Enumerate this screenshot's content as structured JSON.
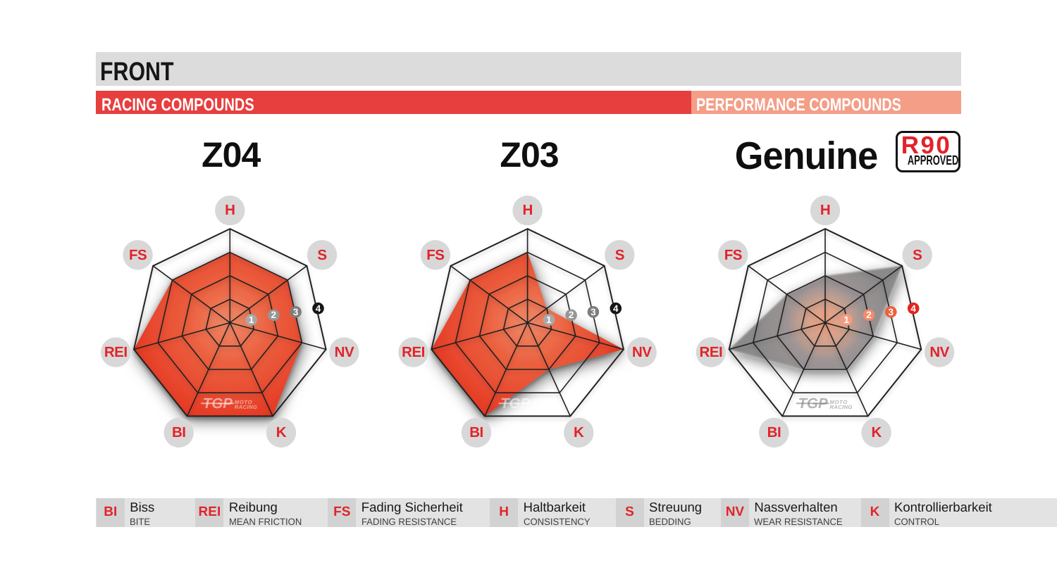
{
  "page": {
    "section_label": "FRONT",
    "left_band_label": "RACING COMPOUNDS",
    "right_band_label": "PERFORMANCE COMPOUNDS"
  },
  "colors": {
    "header_gray": "#dcdcdc",
    "racing_red": "#e73e3e",
    "performance_salmon": "#f49e88",
    "accent_red": "#e2232a",
    "web_line": "#202020",
    "label_circle": "#d8d8d8",
    "legend_strip": "#e3e3e3",
    "legend_box": "#d2d2d2",
    "scale_gray_palette": [
      "#a8a8a8",
      "#969696",
      "#7d7d7d",
      "#161616"
    ],
    "scale_red_palette": [
      "#f59c80",
      "#f28a6c",
      "#eb6140",
      "#e1251f"
    ],
    "red_fill_stops": [
      "#f08a69",
      "#eb5f3e",
      "#e84a30",
      "#e53420"
    ],
    "gray_fill_stops": [
      "#f2a17e",
      "#cf9f8b",
      "#9a9192",
      "#878787"
    ]
  },
  "watermark": {
    "brand": "TGP",
    "line1": "MOTO",
    "line2": "RACING"
  },
  "scale_ticks": [
    "1",
    "2",
    "3",
    "4"
  ],
  "chart_data": {
    "type": "radar",
    "scale": [
      0,
      4
    ],
    "rings": 4,
    "axes": [
      "H",
      "S",
      "NV",
      "K",
      "BI",
      "REI",
      "FS"
    ],
    "series": [
      {
        "name": "Z04",
        "group": "racing",
        "values": [
          3,
          3,
          3,
          4,
          4,
          4,
          3
        ]
      },
      {
        "name": "Z03",
        "group": "racing",
        "values": [
          3,
          1,
          4,
          2,
          4,
          4,
          3
        ]
      },
      {
        "name": "Genuine",
        "group": "performance",
        "values": [
          2,
          4,
          2,
          2,
          2,
          4,
          2
        ],
        "badge": [
          "R90",
          "APPROVED"
        ]
      }
    ]
  },
  "charts": [
    {
      "title": "Z04",
      "fill": "red"
    },
    {
      "title": "Z03",
      "fill": "red"
    },
    {
      "title": "Genuine",
      "fill": "gray",
      "badge_line1": "R90",
      "badge_line2": "APPROVED"
    }
  ],
  "legend": [
    {
      "abbr": "BI",
      "de": "Biss",
      "en": "BITE"
    },
    {
      "abbr": "REI",
      "de": "Reibung",
      "en": "MEAN FRICTION"
    },
    {
      "abbr": "FS",
      "de": "Fading Sicherheit",
      "en": "FADING RESISTANCE"
    },
    {
      "abbr": "H",
      "de": "Haltbarkeit",
      "en": "CONSISTENCY"
    },
    {
      "abbr": "S",
      "de": "Streuung",
      "en": "BEDDING"
    },
    {
      "abbr": "NV",
      "de": "Nassverhalten",
      "en": "WEAR RESISTANCE"
    },
    {
      "abbr": "K",
      "de": "Kontrollierbarkeit",
      "en": "CONTROL"
    }
  ]
}
